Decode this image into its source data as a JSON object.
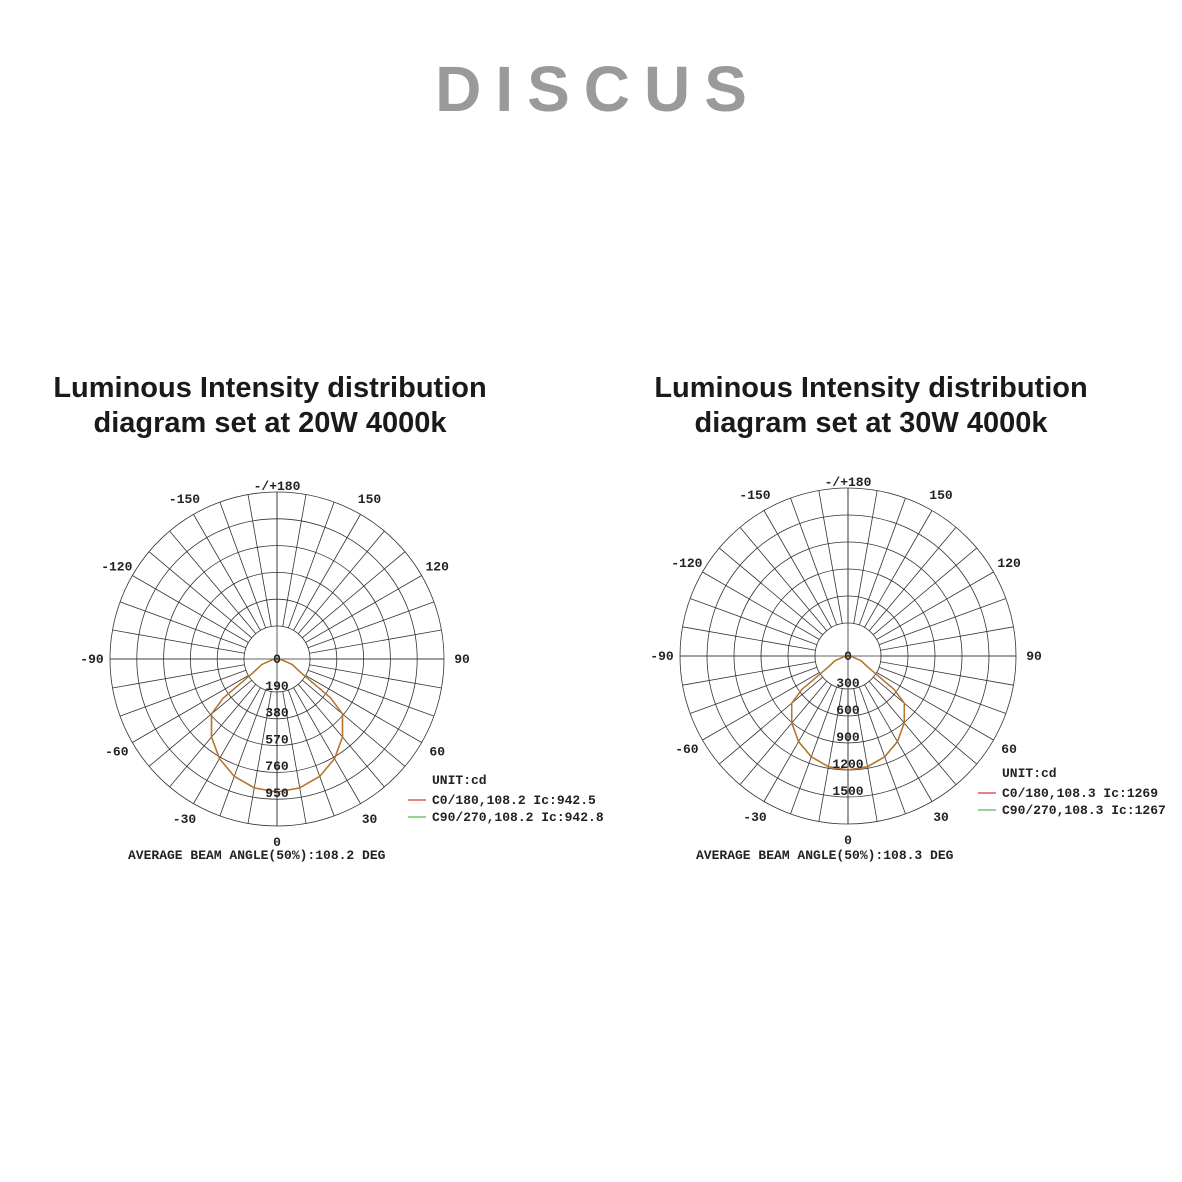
{
  "brand": "DISCUS",
  "colors": {
    "c0": "#d13a3a",
    "c90": "#5cb85c",
    "curve": "#b5752e",
    "grid": "#333333",
    "brand": "#9a9a9a"
  },
  "chart_data": [
    {
      "type": "polar",
      "title_line1": "Luminous Intensity distribution",
      "title_line2": "diagram set at 20W 4000k",
      "angle_labels": [
        "-/+180",
        "150",
        "120",
        "90",
        "60",
        "30",
        "0",
        "-30",
        "-60",
        "-90",
        "-120",
        "-150"
      ],
      "center_label": "0",
      "ring_labels": [
        "190",
        "380",
        "570",
        "760",
        "950"
      ],
      "rmax": 950,
      "unit": "UNIT:cd",
      "legend": [
        "C0/180,108.2 Ic:942.5",
        "C90/270,108.2 Ic:942.8"
      ],
      "footer": "AVERAGE BEAM ANGLE(50%):108.2 DEG",
      "series": [
        {
          "name": "C0/180,108.2 Ic:942.5",
          "angles": [
            0,
            10,
            20,
            30,
            40,
            50,
            54,
            60,
            70,
            80,
            90
          ],
          "values": [
            942.5,
            928,
            886,
            816,
            722,
            606,
            471,
            200,
            115,
            35,
            0
          ]
        },
        {
          "name": "C90/270,108.2 Ic:942.8",
          "angles": [
            0,
            10,
            20,
            30,
            40,
            50,
            54,
            60,
            70,
            80,
            90
          ],
          "values": [
            942.8,
            928,
            886,
            816,
            722,
            606,
            471,
            200,
            115,
            35,
            0
          ]
        }
      ]
    },
    {
      "type": "polar",
      "title_line1": "Luminous Intensity distribution",
      "title_line2": "diagram set at 30W 4000k",
      "angle_labels": [
        "-/+180",
        "150",
        "120",
        "90",
        "60",
        "30",
        "0",
        "-30",
        "-60",
        "-90",
        "-120",
        "-150"
      ],
      "center_label": "0",
      "ring_labels": [
        "300",
        "600",
        "900",
        "1200",
        "1500"
      ],
      "rmax": 1500,
      "unit": "UNIT:cd",
      "legend": [
        "C0/180,108.3 Ic:1269",
        "C90/270,108.3 Ic:1267"
      ],
      "footer": "AVERAGE BEAM ANGLE(50%):108.3 DEG",
      "series": [
        {
          "name": "C0/180,108.3 Ic:1269",
          "angles": [
            0,
            10,
            20,
            30,
            40,
            50,
            54,
            60,
            70,
            80,
            90
          ],
          "values": [
            1269,
            1250,
            1193,
            1099,
            972,
            816,
            634,
            270,
            155,
            47,
            0
          ]
        },
        {
          "name": "C90/270,108.3 Ic:1267",
          "angles": [
            0,
            10,
            20,
            30,
            40,
            50,
            54,
            60,
            70,
            80,
            90
          ],
          "values": [
            1267,
            1248,
            1191,
            1097,
            971,
            815,
            633,
            270,
            155,
            47,
            0
          ]
        }
      ]
    }
  ]
}
